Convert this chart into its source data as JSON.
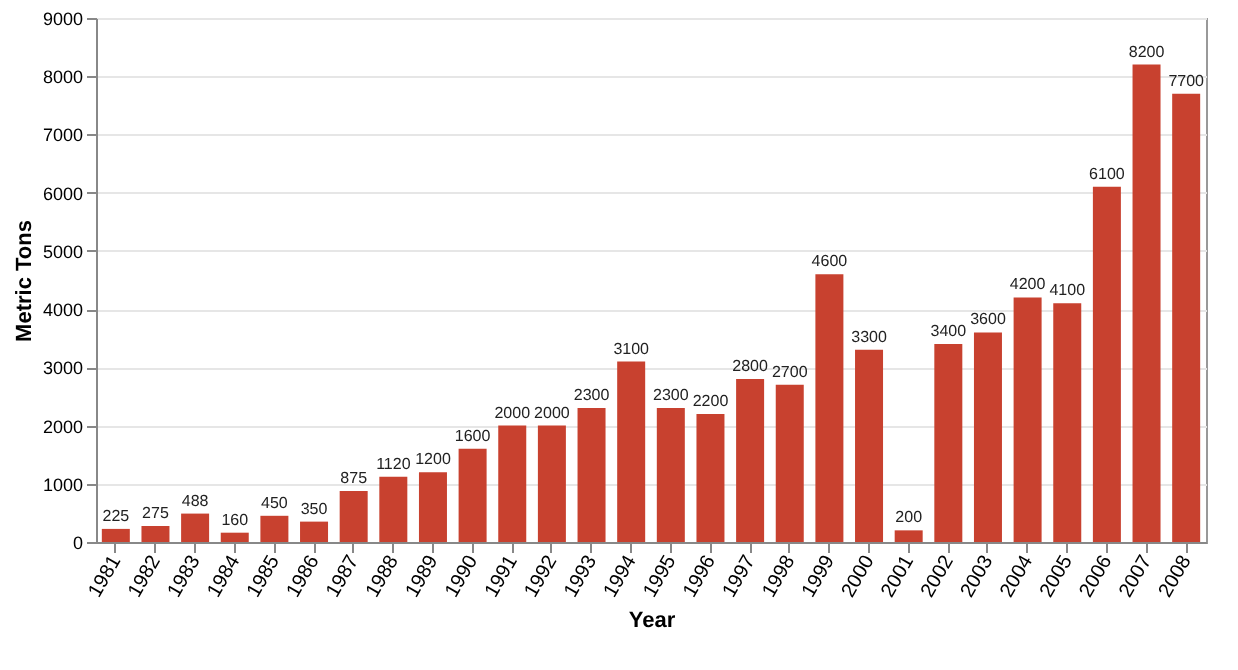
{
  "chart_data": {
    "type": "bar",
    "xlabel": "Year",
    "ylabel": "Metric Tons",
    "categories": [
      "1981",
      "1982",
      "1983",
      "1984",
      "1985",
      "1986",
      "1987",
      "1988",
      "1989",
      "1990",
      "1991",
      "1992",
      "1993",
      "1994",
      "1995",
      "1996",
      "1997",
      "1998",
      "1999",
      "2000",
      "2001",
      "2002",
      "2003",
      "2004",
      "2005",
      "2006",
      "2007",
      "2008"
    ],
    "values": [
      225,
      275,
      488,
      160,
      450,
      350,
      875,
      1120,
      1200,
      1600,
      2000,
      2000,
      2300,
      3100,
      2300,
      2200,
      2800,
      2700,
      4600,
      3300,
      200,
      3400,
      3600,
      4200,
      4100,
      6100,
      8200,
      7700
    ],
    "color": "#c8412f",
    "ylim": [
      0,
      9000
    ],
    "yticks": [
      0,
      1000,
      2000,
      3000,
      4000,
      5000,
      6000,
      7000,
      8000,
      9000
    ],
    "grid": "y",
    "data_labels": true
  }
}
